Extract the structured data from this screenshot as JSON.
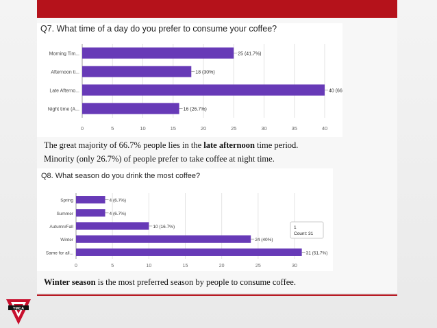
{
  "colors": {
    "accent": "#b5121b",
    "bar": "#673ab7"
  },
  "q7": {
    "title": "Q7. What time of a day do you prefer to consume your coffee?",
    "caption_pre": "The great majority of 66.7% people lies in the ",
    "caption_bold": "late afternoon",
    "caption_post": " time period.",
    "caption2": "Minority (only 26.7%) of people  prefer to take coffee at night time."
  },
  "q8": {
    "title": "Q8. What season do you drink the most coffee?",
    "caption_bold": "Winter season",
    "caption_post": " is the most preferred season by people to consume coffee."
  },
  "logo": {
    "text": "YMCA",
    "icon": "triangle-logo-icon"
  },
  "chart_data": [
    {
      "type": "bar",
      "orientation": "horizontal",
      "title": "Q7. What time of a day do you prefer to consume your coffee?",
      "categories": [
        "Morning Tim...",
        "Afternoon ti...",
        "Late Afterno...",
        "Night time (A..."
      ],
      "values": [
        25,
        18,
        40,
        16
      ],
      "labels": [
        "25 (41.7%)",
        "18 (30%)",
        "40 (66.7%)",
        "16 (26.7%)"
      ],
      "xlim": [
        0,
        40
      ],
      "xticks": [
        0,
        5,
        10,
        15,
        20,
        25,
        30,
        35,
        40
      ],
      "grid": true
    },
    {
      "type": "bar",
      "orientation": "horizontal",
      "title": "Q8. What season do you drink the most coffee?",
      "categories": [
        "Spring",
        "Summer",
        "Autumn/Fall",
        "Winter",
        "Same for all..."
      ],
      "values": [
        4,
        4,
        10,
        24,
        31
      ],
      "labels": [
        "4 (6.7%)",
        "4 (6.7%)",
        "10 (16.7%)",
        "24 (40%)",
        "31 (51.7%)"
      ],
      "xlim": [
        0,
        30
      ],
      "xticks": [
        0,
        5,
        10,
        15,
        20,
        25,
        30
      ],
      "grid": true,
      "tooltip": {
        "line1": "1",
        "line2": "Count: 31"
      }
    }
  ]
}
